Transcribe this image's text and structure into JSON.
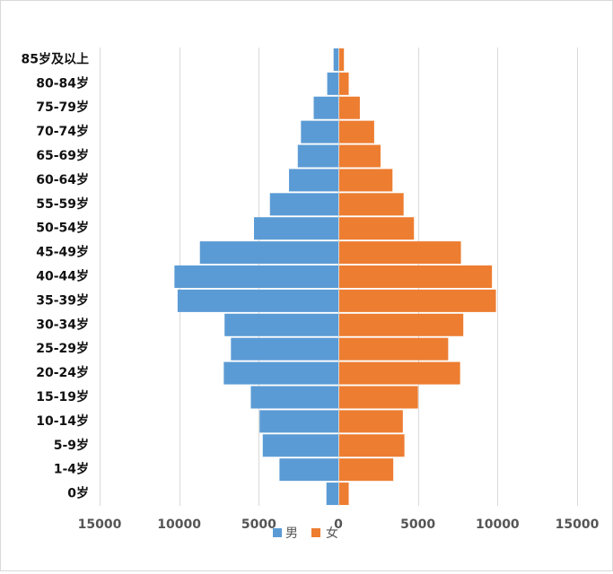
{
  "chart_data": {
    "type": "bar",
    "orientation": "horizontal",
    "subtype": "population-pyramid",
    "categories": [
      "0岁",
      "1-4岁",
      "5-9岁",
      "10-14岁",
      "15-19岁",
      "20-24岁",
      "25-29岁",
      "30-34岁",
      "35-39岁",
      "40-44岁",
      "45-49岁",
      "50-54岁",
      "55-59岁",
      "60-64岁",
      "65-69岁",
      "70-74岁",
      "75-79岁",
      "80-84岁",
      "85岁及以上"
    ],
    "series": [
      {
        "name": "男",
        "color": "#5b9bd5",
        "values": [
          750,
          3700,
          4750,
          4950,
          5500,
          7200,
          6750,
          7150,
          10100,
          10300,
          8700,
          5300,
          4300,
          3100,
          2550,
          2350,
          1550,
          700,
          300
        ]
      },
      {
        "name": "女",
        "color": "#ed7d31",
        "values": [
          650,
          3450,
          4150,
          4050,
          5000,
          7650,
          6900,
          7850,
          9900,
          9650,
          7700,
          4750,
          4100,
          3400,
          2650,
          2250,
          1350,
          650,
          350
        ]
      }
    ],
    "xlim": [
      -15000,
      15000
    ],
    "xticks": [
      -15000,
      -10000,
      -5000,
      0,
      5000,
      10000,
      15000
    ],
    "xtick_labels": [
      "15000",
      "10000",
      "5000",
      "0",
      "5000",
      "10000",
      "15000"
    ],
    "grid": true,
    "legend_position": "bottom"
  }
}
